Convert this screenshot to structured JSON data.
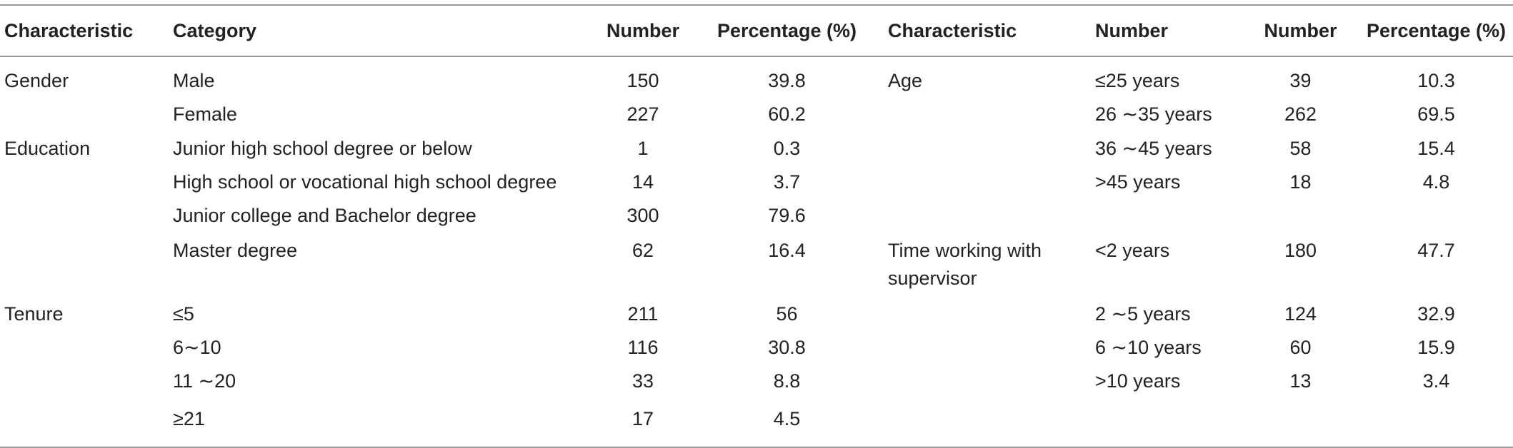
{
  "headers": [
    "Characteristic",
    "Category",
    "Number",
    "Percentage (%)",
    "Characteristic",
    "Number",
    "Number",
    "Percentage (%)"
  ],
  "rows": [
    [
      "Gender",
      "Male",
      "150",
      "39.8",
      "Age",
      "≤25 years",
      "39",
      "10.3"
    ],
    [
      "",
      "Female",
      "227",
      "60.2",
      "",
      "26 ∼35 years",
      "262",
      "69.5"
    ],
    [
      "Education",
      "Junior high school degree or below",
      "1",
      "0.3",
      "",
      "36 ∼45 years",
      "58",
      "15.4"
    ],
    [
      "",
      "High school or vocational high school degree",
      "14",
      "3.7",
      "",
      ">45 years",
      "18",
      "4.8"
    ],
    [
      "",
      "Junior college and Bachelor degree",
      "300",
      "79.6",
      "",
      "",
      "",
      ""
    ],
    [
      "",
      "Master degree",
      "62",
      "16.4",
      "Time working with supervisor",
      "<2 years",
      "180",
      "47.7"
    ],
    [
      "Tenure",
      "≤5",
      "211",
      "56",
      "",
      "2 ∼5 years",
      "124",
      "32.9"
    ],
    [
      "",
      "6∼10",
      "116",
      "30.8",
      "",
      "6 ∼10 years",
      "60",
      "15.9"
    ],
    [
      "",
      "11 ∼20",
      "33",
      "8.8",
      "",
      ">10 years",
      "13",
      "3.4"
    ],
    [
      "",
      "≥21",
      "17",
      "4.5",
      "",
      "",
      "",
      ""
    ]
  ]
}
